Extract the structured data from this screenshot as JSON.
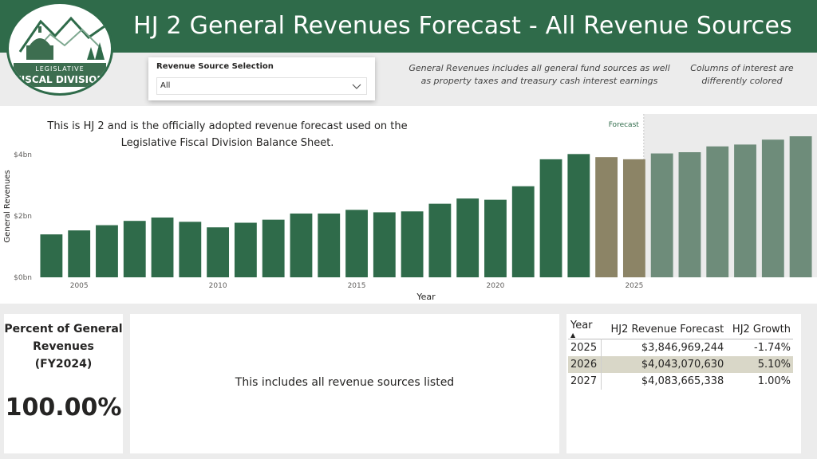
{
  "header": {
    "title": "HJ 2 General Revenues Forecast - All Revenue Sources",
    "logo_line1": "LEGISLATIVE",
    "logo_line2": "FISCAL DIVISION"
  },
  "slicer": {
    "label": "Revenue Source Selection",
    "selected": "All"
  },
  "notes": {
    "general_revenues": "General Revenues includes all general fund sources as well as property taxes and treasury cash interest earnings",
    "columns": "Columns of interest are differently colored"
  },
  "chart_note": "This is HJ 2 and is the officially adopted revenue forecast used on the Legislative Fiscal Division Balance Sheet.",
  "chart_data": {
    "type": "bar",
    "xlabel": "Year",
    "ylabel": "General Revenues",
    "ylim": [
      0,
      4.6
    ],
    "yticks": [
      {
        "value": 0,
        "label": "$0bn"
      },
      {
        "value": 2,
        "label": "$2bn"
      },
      {
        "value": 4,
        "label": "$4bn"
      }
    ],
    "xticks": [
      2005,
      2010,
      2015,
      2020,
      2025
    ],
    "forecast_label": "Forecast",
    "forecast_start": 2025,
    "grid": false,
    "colors": {
      "actual": "#2f6b4a",
      "highlight": "#8c8466",
      "forecast": "#6e8c7a",
      "forecast_shade": "#ebebeb"
    },
    "categories": [
      2004,
      2005,
      2006,
      2007,
      2008,
      2009,
      2010,
      2011,
      2012,
      2013,
      2014,
      2015,
      2016,
      2017,
      2018,
      2019,
      2020,
      2021,
      2022,
      2023,
      2024,
      2025,
      2026,
      2027,
      2028,
      2029,
      2030,
      2031
    ],
    "values": [
      1.4,
      1.53,
      1.7,
      1.84,
      1.95,
      1.81,
      1.63,
      1.78,
      1.88,
      2.08,
      2.08,
      2.2,
      2.12,
      2.15,
      2.4,
      2.57,
      2.53,
      2.97,
      3.85,
      4.02,
      3.92,
      3.85,
      4.04,
      4.08,
      4.27,
      4.33,
      4.49,
      4.6
    ],
    "bar_color_keys": [
      "actual",
      "actual",
      "actual",
      "actual",
      "actual",
      "actual",
      "actual",
      "actual",
      "actual",
      "actual",
      "actual",
      "actual",
      "actual",
      "actual",
      "actual",
      "actual",
      "actual",
      "actual",
      "actual",
      "actual",
      "highlight",
      "highlight",
      "forecast",
      "forecast",
      "forecast",
      "forecast",
      "forecast",
      "forecast"
    ]
  },
  "kpi": {
    "title_line1": "Percent of General",
    "title_line2": "Revenues",
    "title_line3": "(FY2024)",
    "value": "100.00%"
  },
  "description": "This includes all revenue sources listed",
  "table": {
    "columns": [
      "Year",
      "HJ2 Revenue Forecast",
      "HJ2 Growth"
    ],
    "rows": [
      {
        "year": "2025",
        "forecast": "$3,846,969,244",
        "growth": "-1.74%"
      },
      {
        "year": "2026",
        "forecast": "$4,043,070,630",
        "growth": "5.10%"
      },
      {
        "year": "2027",
        "forecast": "$4,083,665,338",
        "growth": "1.00%"
      }
    ]
  }
}
